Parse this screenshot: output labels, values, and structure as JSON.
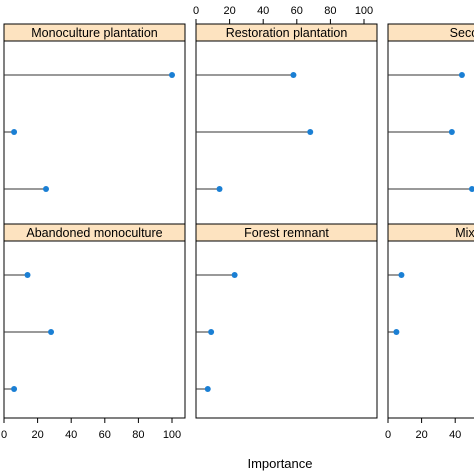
{
  "chart_data": {
    "type": "lollipop",
    "xlabel": "Importance",
    "x_ticks": [
      0,
      20,
      40,
      60,
      80,
      100
    ],
    "xlim": [
      0,
      100
    ],
    "grid": false,
    "point_color": "#1a7fd4",
    "strip_color": "#fde3c0",
    "panels": [
      {
        "title": "Monoculture plantation",
        "values": [
          100,
          6,
          25
        ]
      },
      {
        "title": "Restoration plantation",
        "values": [
          58,
          68,
          14
        ]
      },
      {
        "title": "Second-gr",
        "values": [
          44,
          38,
          50
        ]
      },
      {
        "title": "Abandoned monoculture",
        "values": [
          14,
          28,
          6
        ]
      },
      {
        "title": "Forest remnant",
        "values": [
          23,
          9,
          7
        ]
      },
      {
        "title": "Mixed pl",
        "values": [
          8,
          5
        ]
      }
    ]
  }
}
